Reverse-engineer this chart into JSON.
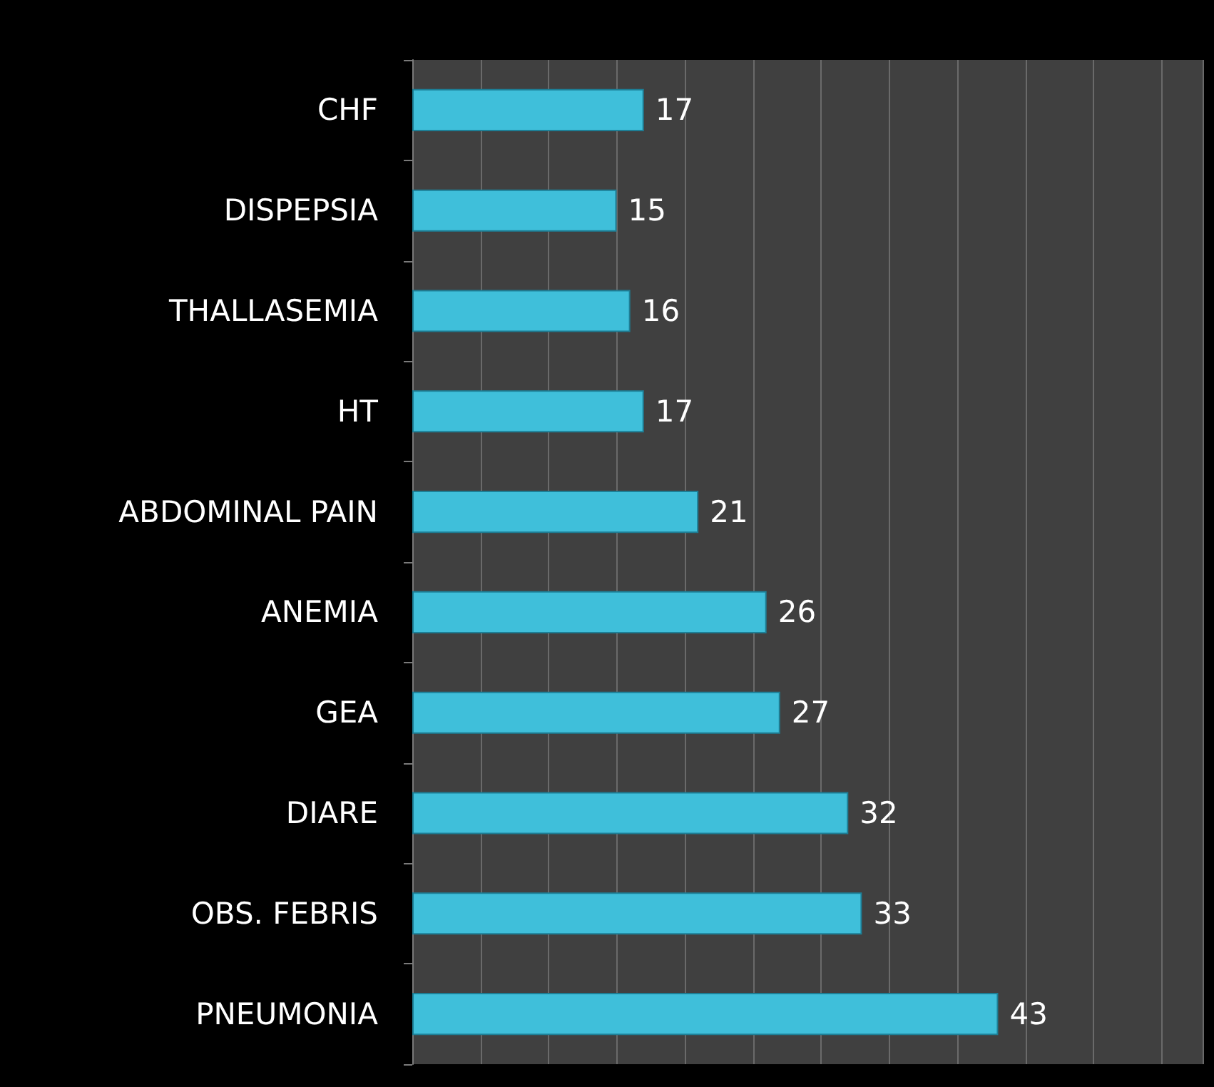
{
  "chart_data": {
    "type": "bar",
    "orientation": "horizontal",
    "categories": [
      "CHF",
      "DISPEPSIA",
      "THALLASEMIA",
      "HT",
      "ABDOMINAL PAIN",
      "ANEMIA",
      "GEA",
      "DIARE",
      "OBS. FEBRIS",
      "PNEUMONIA"
    ],
    "values": [
      17,
      15,
      16,
      17,
      21,
      26,
      27,
      32,
      33,
      43
    ],
    "color": "#3fbfda",
    "data_labels": true,
    "grid": "x",
    "tick_labels": "y",
    "xlim": [
      0,
      58
    ]
  }
}
